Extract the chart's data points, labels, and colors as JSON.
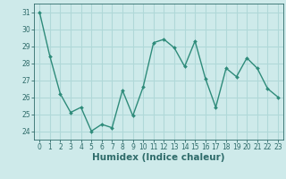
{
  "x": [
    0,
    1,
    2,
    3,
    4,
    5,
    6,
    7,
    8,
    9,
    10,
    11,
    12,
    13,
    14,
    15,
    16,
    17,
    18,
    19,
    20,
    21,
    22,
    23
  ],
  "y": [
    31,
    28.4,
    26.2,
    25.1,
    25.4,
    24.0,
    24.4,
    24.2,
    26.4,
    24.9,
    26.6,
    29.2,
    29.4,
    28.9,
    27.8,
    29.3,
    27.1,
    25.4,
    27.7,
    27.2,
    28.3,
    27.7,
    26.5,
    26.0
  ],
  "xlabel": "Humidex (Indice chaleur)",
  "line_color": "#2e8b7a",
  "marker": "D",
  "marker_size": 2.0,
  "line_width": 1.0,
  "bg_color": "#ceeaea",
  "grid_color": "#b0d8d8",
  "ylim": [
    23.5,
    31.5
  ],
  "xlim": [
    -0.5,
    23.5
  ],
  "yticks": [
    24,
    25,
    26,
    27,
    28,
    29,
    30,
    31
  ],
  "xticks": [
    0,
    1,
    2,
    3,
    4,
    5,
    6,
    7,
    8,
    9,
    10,
    11,
    12,
    13,
    14,
    15,
    16,
    17,
    18,
    19,
    20,
    21,
    22,
    23
  ],
  "tick_color": "#2e6b6a",
  "tick_labelsize": 5.5,
  "xlabel_fontsize": 7.5
}
